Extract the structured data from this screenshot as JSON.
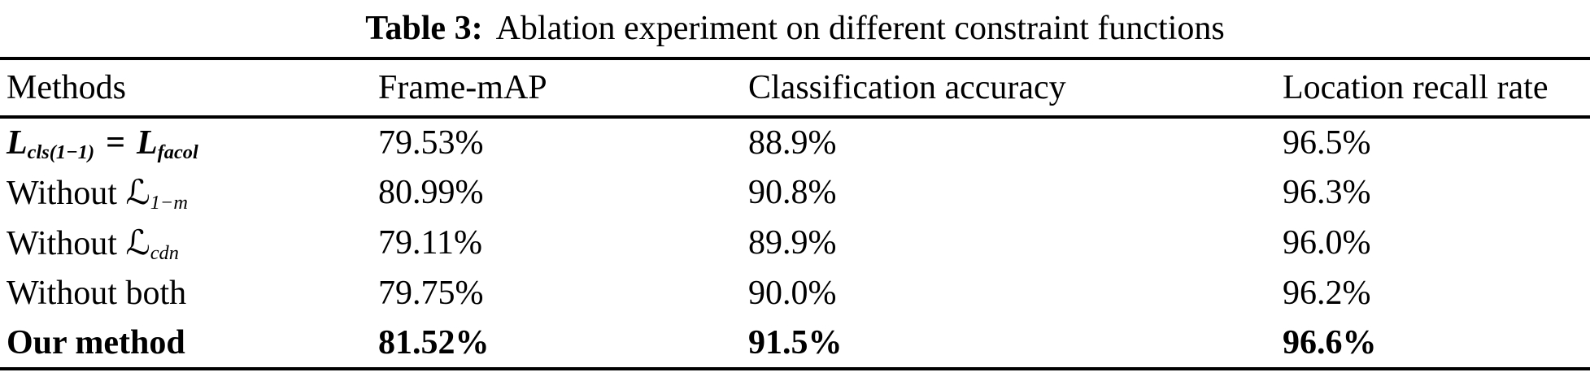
{
  "caption": {
    "label": "Table 3:",
    "text": "Ablation experiment on different constraint functions"
  },
  "columns": {
    "methods": "Methods",
    "frame_map": "Frame-mAP",
    "classification_accuracy": "Classification accuracy",
    "location_recall_rate": "Location recall rate"
  },
  "rows": [
    {
      "method": {
        "l1": "L",
        "sub1": "cls(1−1)",
        "eq": "=",
        "l2": "L",
        "sub2": "facol"
      },
      "frame_map": "79.53%",
      "classification_accuracy": "88.9%",
      "location_recall_rate": "96.5%"
    },
    {
      "method": {
        "prefix": "Without",
        "symbol": "ℒ",
        "subscript": "1−m"
      },
      "frame_map": "80.99%",
      "classification_accuracy": "90.8%",
      "location_recall_rate": "96.3%"
    },
    {
      "method": {
        "prefix": "Without",
        "symbol": "ℒ",
        "subscript": "cdn"
      },
      "frame_map": "79.11%",
      "classification_accuracy": "89.9%",
      "location_recall_rate": "96.0%"
    },
    {
      "method": {
        "text": "Without both"
      },
      "frame_map": "79.75%",
      "classification_accuracy": "90.0%",
      "location_recall_rate": "96.2%"
    },
    {
      "method": {
        "text": "Our method"
      },
      "emphasis": "bold",
      "frame_map": "81.52%",
      "classification_accuracy": "91.5%",
      "location_recall_rate": "96.6%"
    }
  ],
  "colors": {
    "text": "#000000",
    "background": "#ffffff",
    "rule": "#000000"
  }
}
